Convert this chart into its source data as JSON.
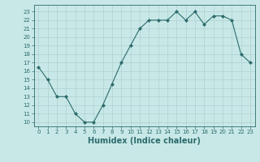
{
  "x": [
    0,
    1,
    2,
    3,
    4,
    5,
    6,
    7,
    8,
    9,
    10,
    11,
    12,
    13,
    14,
    15,
    16,
    17,
    18,
    19,
    20,
    21,
    22,
    23
  ],
  "y": [
    16.5,
    15,
    13,
    13,
    11,
    10,
    10,
    12,
    14.5,
    17,
    19,
    21,
    22,
    22,
    22,
    23,
    22,
    23,
    21.5,
    22.5,
    22.5,
    22,
    18,
    17
  ],
  "line_color": "#2d6b6b",
  "marker": "D",
  "marker_size": 2.0,
  "bg_color": "#c8e8e8",
  "grid_color": "#b0d0d0",
  "xlabel": "Humidex (Indice chaleur)",
  "xlabel_fontsize": 7,
  "tick_fontsize": 5,
  "yticks": [
    10,
    11,
    12,
    13,
    14,
    15,
    16,
    17,
    18,
    19,
    20,
    21,
    22,
    23
  ],
  "xticks": [
    0,
    1,
    2,
    3,
    4,
    5,
    6,
    7,
    8,
    9,
    10,
    11,
    12,
    13,
    14,
    15,
    16,
    17,
    18,
    19,
    20,
    21,
    22,
    23
  ],
  "ylim": [
    9.5,
    23.8
  ],
  "xlim": [
    -0.5,
    23.5
  ]
}
